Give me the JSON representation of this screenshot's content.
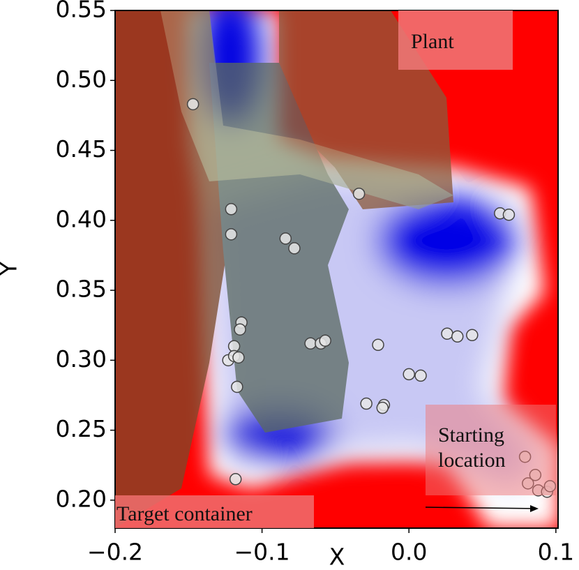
{
  "chart_data": {
    "type": "scatter",
    "x_label": "X",
    "y_label": "Y",
    "xlim": [
      -0.2,
      0.1015
    ],
    "ylim": [
      0.18,
      0.55
    ],
    "xticks": [
      {
        "value": -0.2,
        "label": "−0.2"
      },
      {
        "value": -0.1,
        "label": "−0.1"
      },
      {
        "value": 0,
        "label": "0.0"
      },
      0.1
    ],
    "yticks": [
      {
        "value": 0.2,
        "label": "0.20"
      },
      0.25,
      {
        "value": 0.3,
        "label": "0.30"
      },
      0.35,
      {
        "value": 0.4,
        "label": "0.40"
      },
      0.45,
      {
        "value": 0.5,
        "label": "0.50"
      },
      0.55
    ],
    "color": "#e6e6e6",
    "x": [
      -0.147,
      -0.121,
      -0.121,
      -0.084,
      -0.078,
      -0.034,
      0.062,
      0.068,
      -0.114,
      -0.115,
      -0.119,
      -0.123,
      -0.119,
      -0.116,
      -0.117,
      -0.067,
      -0.06,
      -0.057,
      -0.021,
      0.026,
      0.033,
      0.043,
      0.0,
      0.008,
      -0.029,
      -0.017,
      -0.018,
      -0.118,
      0.079,
      0.086,
      0.081,
      0.088,
      0.094,
      0.096
    ],
    "y": [
      0.483,
      0.408,
      0.39,
      0.387,
      0.38,
      0.419,
      0.405,
      0.404,
      0.327,
      0.322,
      0.31,
      0.3,
      0.303,
      0.302,
      0.281,
      0.312,
      0.312,
      0.314,
      0.311,
      0.319,
      0.317,
      0.318,
      0.29,
      0.289,
      0.269,
      0.268,
      0.266,
      0.215,
      0.231,
      0.218,
      0.212,
      0.207,
      0.206,
      0.21
    ],
    "annotations": [
      "Plant",
      "Starting location",
      "Target container"
    ]
  }
}
